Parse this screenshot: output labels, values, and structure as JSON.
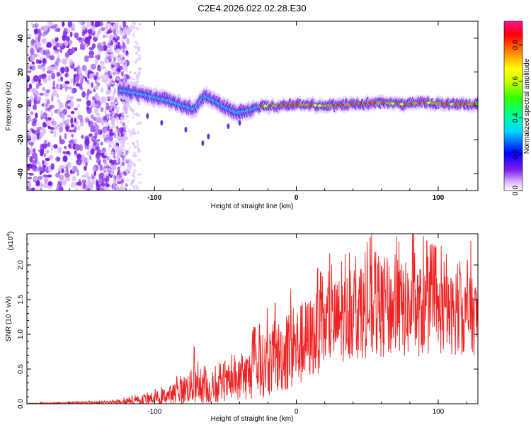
{
  "title": "C2E4.2026.022.02.28.E30",
  "chart_data": [
    {
      "type": "heatmap",
      "name": "spectrogram",
      "xlabel": "Height of straight line (km)",
      "ylabel": "Frequency (Hz)",
      "xlim": [
        -190,
        128
      ],
      "ylim": [
        -50,
        50
      ],
      "xticks": [
        -100,
        0,
        100
      ],
      "yticks": [
        -40,
        -20,
        0,
        20,
        40
      ],
      "colorbar": {
        "label": "Normalized spectral amplitude",
        "range": [
          0.0,
          0.93
        ],
        "ticks": [
          0.0,
          0.2,
          0.4,
          0.6,
          0.8
        ]
      },
      "ridge": [
        {
          "x": -122,
          "f": 9
        },
        {
          "x": -110,
          "f": 7
        },
        {
          "x": -100,
          "f": 5
        },
        {
          "x": -90,
          "f": 3
        },
        {
          "x": -80,
          "f": 0
        },
        {
          "x": -72,
          "f": -2
        },
        {
          "x": -65,
          "f": 6
        },
        {
          "x": -58,
          "f": 3
        },
        {
          "x": -50,
          "f": -1
        },
        {
          "x": -42,
          "f": -4
        },
        {
          "x": -35,
          "f": -3
        },
        {
          "x": -25,
          "f": 0
        },
        {
          "x": -15,
          "f": 0
        },
        {
          "x": 0,
          "f": 1
        },
        {
          "x": 20,
          "f": 0
        },
        {
          "x": 40,
          "f": 1
        },
        {
          "x": 60,
          "f": 2
        },
        {
          "x": 75,
          "f": 1
        },
        {
          "x": 90,
          "f": 2
        },
        {
          "x": 110,
          "f": 1
        },
        {
          "x": 128,
          "f": 1
        }
      ]
    },
    {
      "type": "line",
      "name": "snr",
      "xlabel": "Height of straight line (km)",
      "ylabel": "SNR (10 * v/v)",
      "yscale_label": "(x10",
      "yscale_exp": "4",
      "yscale_close": ")",
      "xlim": [
        -190,
        128
      ],
      "ylim": [
        0.0,
        2.45
      ],
      "xticks": [
        -100,
        0,
        100
      ],
      "yticks": [
        "0.0",
        "0.5",
        "1.0",
        "1.5",
        "2.0"
      ],
      "color": "#ee2222",
      "envelope": [
        {
          "x": -190,
          "mean": 0.005,
          "amp": 0.005
        },
        {
          "x": -130,
          "mean": 0.02,
          "amp": 0.02
        },
        {
          "x": -120,
          "mean": 0.04,
          "amp": 0.04
        },
        {
          "x": -100,
          "mean": 0.08,
          "amp": 0.09
        },
        {
          "x": -85,
          "mean": 0.15,
          "amp": 0.15
        },
        {
          "x": -75,
          "mean": 0.25,
          "amp": 0.25
        },
        {
          "x": -60,
          "mean": 0.2,
          "amp": 0.2
        },
        {
          "x": -45,
          "mean": 0.3,
          "amp": 0.25
        },
        {
          "x": -30,
          "mean": 0.45,
          "amp": 0.4
        },
        {
          "x": -20,
          "mean": 0.6,
          "amp": 0.5
        },
        {
          "x": -10,
          "mean": 0.7,
          "amp": 0.55
        },
        {
          "x": 0,
          "mean": 0.8,
          "amp": 0.6
        },
        {
          "x": 10,
          "mean": 0.95,
          "amp": 0.6
        },
        {
          "x": 20,
          "mean": 1.1,
          "amp": 0.6
        },
        {
          "x": 40,
          "mean": 1.3,
          "amp": 0.65
        },
        {
          "x": 60,
          "mean": 1.35,
          "amp": 0.7
        },
        {
          "x": 80,
          "mean": 1.35,
          "amp": 0.7
        },
        {
          "x": 100,
          "mean": 1.3,
          "amp": 0.6
        },
        {
          "x": 128,
          "mean": 1.25,
          "amp": 0.55
        }
      ],
      "peaks": [
        {
          "x": -72,
          "y": 0.82
        },
        {
          "x": -65,
          "y": 0.55
        },
        {
          "x": -30,
          "y": 1.1
        },
        {
          "x": -15,
          "y": 1.45
        },
        {
          "x": -4,
          "y": 1.65
        },
        {
          "x": 15,
          "y": 1.95
        },
        {
          "x": 32,
          "y": 2.05
        },
        {
          "x": 52,
          "y": 2.4
        },
        {
          "x": 64,
          "y": 2.1
        },
        {
          "x": 82,
          "y": 2.45
        },
        {
          "x": 92,
          "y": 2.35
        },
        {
          "x": 115,
          "y": 1.9
        },
        {
          "x": 123,
          "y": 2.35
        }
      ]
    }
  ]
}
